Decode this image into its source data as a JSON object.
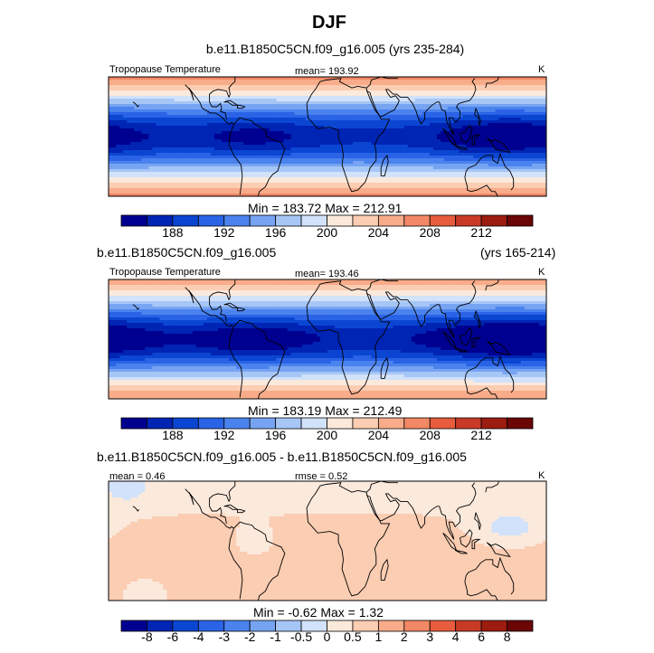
{
  "page": {
    "title": "DJF"
  },
  "panels": [
    {
      "case_left": "b.e11.B1850C5CN.f09_g16.005 (yrs 235-284)",
      "case_right": "",
      "variable": "Tropopause Temperature",
      "stat1": "mean= 193.92",
      "stat2": "",
      "units": "K",
      "minmax": "Min = 183.72 Max = 212.91",
      "colorbar_labels": [
        "188",
        "192",
        "196",
        "200",
        "204",
        "208",
        "212"
      ]
    },
    {
      "case_left": "b.e11.B1850C5CN.f09_g16.005",
      "case_right": "(yrs 165-214)",
      "variable": "Tropopause Temperature",
      "stat1": "mean= 193.46",
      "stat2": "",
      "units": "K",
      "minmax": "Min = 183.19 Max = 212.49",
      "colorbar_labels": [
        "188",
        "192",
        "196",
        "200",
        "204",
        "208",
        "212"
      ]
    },
    {
      "case_left": "b.e11.B1850C5CN.f09_g16.005 - b.e11.B1850C5CN.f09_g16.005",
      "case_right": "",
      "variable": "",
      "stat1": "mean =  0.46",
      "stat2": "rmse =  0.52",
      "units": "K",
      "minmax": "Min =  -0.62 Max =   1.32",
      "colorbar_labels": [
        "-8",
        "-6",
        "-4",
        "-3",
        "-2",
        "-1",
        "-0.5",
        "0",
        "0.5",
        "1",
        "2",
        "3",
        "4",
        "6",
        "8"
      ]
    }
  ],
  "chart_data": [
    {
      "type": "heatmap",
      "title": "b.e11.B1850C5CN.f09_g16.005 (yrs 235-284)",
      "variable": "Tropopause Temperature",
      "units": "K",
      "mean": 193.92,
      "min": 183.72,
      "max": 212.91,
      "levels": [
        186,
        188,
        190,
        192,
        194,
        196,
        198,
        200,
        202,
        204,
        206,
        208,
        210,
        212,
        214
      ],
      "colorbar_labels": [
        "188",
        "192",
        "196",
        "200",
        "204",
        "208",
        "212"
      ],
      "colors": [
        "#000090",
        "#0024b4",
        "#0b46d2",
        "#2a63e6",
        "#4b83ee",
        "#77a4f2",
        "#a6c6f6",
        "#d1e2fa",
        "#fbe9dc",
        "#fbcdb2",
        "#f8ac8a",
        "#f28865",
        "#e65c3c",
        "#c93a26",
        "#9c1c10",
        "#6a0606"
      ],
      "field_model": {
        "base": 212.0,
        "drop": 24.3,
        "lat_width_deg": 22,
        "warm_pool_center_lon": 150,
        "warm_pool_extra": 4.2,
        "secondary_center_lon": -60,
        "secondary_extra": 2.5
      }
    },
    {
      "type": "heatmap",
      "title": "b.e11.B1850C5CN.f09_g16.005 (yrs 165-214)",
      "variable": "Tropopause Temperature",
      "units": "K",
      "mean": 193.46,
      "min": 183.19,
      "max": 212.49,
      "levels": [
        186,
        188,
        190,
        192,
        194,
        196,
        198,
        200,
        202,
        204,
        206,
        208,
        210,
        212,
        214
      ],
      "colorbar_labels": [
        "188",
        "192",
        "196",
        "200",
        "204",
        "208",
        "212"
      ],
      "colors": [
        "#000090",
        "#0024b4",
        "#0b46d2",
        "#2a63e6",
        "#4b83ee",
        "#77a4f2",
        "#a6c6f6",
        "#d1e2fa",
        "#fbe9dc",
        "#fbcdb2",
        "#f8ac8a",
        "#f28865",
        "#e65c3c",
        "#c93a26",
        "#9c1c10",
        "#6a0606"
      ],
      "field_model": {
        "base": 211.6,
        "drop": 24.7,
        "lat_width_deg": 22,
        "warm_pool_center_lon": 150,
        "warm_pool_extra": 4.8,
        "secondary_center_lon": -60,
        "secondary_extra": 3.0
      }
    },
    {
      "type": "heatmap",
      "title": "b.e11.B1850C5CN.f09_g16.005 - b.e11.B1850C5CN.f09_g16.005",
      "units": "K",
      "mean": 0.46,
      "rmse": 0.52,
      "min": -0.62,
      "max": 1.32,
      "levels": [
        -8,
        -6,
        -4,
        -3,
        -2,
        -1,
        -0.5,
        0,
        0.5,
        1,
        2,
        3,
        4,
        6,
        8
      ],
      "colorbar_labels": [
        "-8",
        "-6",
        "-4",
        "-3",
        "-2",
        "-1",
        "-0.5",
        "0",
        "0.5",
        "1",
        "2",
        "3",
        "4",
        "6",
        "8"
      ],
      "colors": [
        "#000090",
        "#0024b4",
        "#0b46d2",
        "#2a63e6",
        "#4b83ee",
        "#77a4f2",
        "#a6c6f6",
        "#d1e2fa",
        "#fbe9dc",
        "#fbcdb2",
        "#f8ac8a",
        "#f28865",
        "#e65c3c",
        "#c93a26",
        "#9c1c10",
        "#6a0606"
      ],
      "field_model": {
        "base": 0.45,
        "bands": [
          [
            -5,
            0.25,
            12
          ],
          [
            -35,
            0.25,
            10
          ]
        ],
        "negative_spots": [
          [
            150,
            8,
            20,
            8,
            -0.8
          ],
          [
            -165,
            35,
            15,
            8,
            -0.8
          ],
          [
            -150,
            -35,
            12,
            6,
            -0.7
          ],
          [
            -60,
            0,
            10,
            6,
            -0.6
          ]
        ]
      }
    }
  ]
}
